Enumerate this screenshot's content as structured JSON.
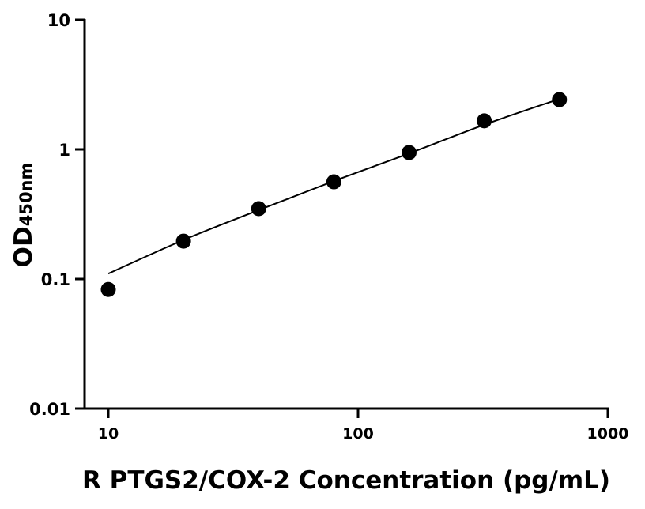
{
  "chart_data": {
    "type": "scatter",
    "title": "",
    "xlabel": "R PTGS2/COX-2 Concentration (pg/mL)",
    "ylabel": "OD",
    "ylabel_subscript": "450nm",
    "xscale": "log",
    "yscale": "log",
    "xlim": [
      10,
      1000
    ],
    "ylim": [
      0.01,
      10
    ],
    "grid": false,
    "x_ticks": [
      {
        "value": 10,
        "label": "10"
      },
      {
        "value": 100,
        "label": "100"
      },
      {
        "value": 1000,
        "label": "1000"
      }
    ],
    "y_ticks": [
      {
        "value": 0.01,
        "label": "0.01"
      },
      {
        "value": 0.1,
        "label": "0.1"
      },
      {
        "value": 1,
        "label": "1"
      },
      {
        "value": 10,
        "label": "10"
      }
    ],
    "points": {
      "x": [
        10,
        20,
        40,
        80,
        160,
        320,
        640
      ],
      "y": [
        0.083,
        0.196,
        0.349,
        0.562,
        0.945,
        1.66,
        2.42
      ],
      "color": "#000000"
    },
    "fit_curve": {
      "x": [
        10,
        20,
        40,
        80,
        160,
        320,
        640
      ],
      "y": [
        0.11,
        0.2,
        0.34,
        0.57,
        0.93,
        1.55,
        2.45
      ],
      "color": "#000000"
    }
  }
}
